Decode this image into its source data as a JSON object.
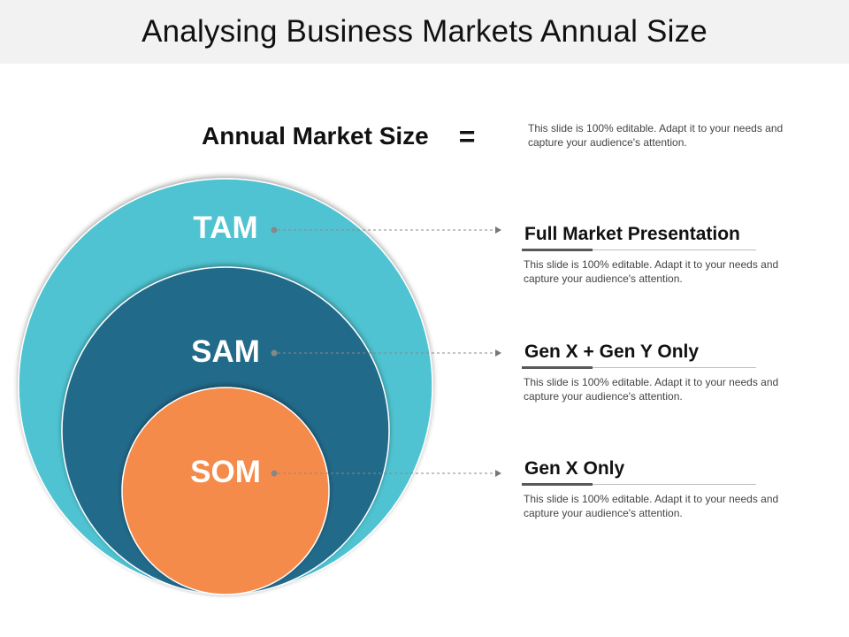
{
  "title": "Analysing Business Markets Annual Size",
  "equation": {
    "label": "Annual Market Size",
    "symbol": "=",
    "description": "This slide is 100% editable. Adapt it to your needs and capture your audience's attention."
  },
  "circles": [
    {
      "label": "TAM",
      "color": "#4fc3d1"
    },
    {
      "label": "SAM",
      "color": "#216b8a"
    },
    {
      "label": "SOM",
      "color": "#f58b4c"
    }
  ],
  "items": [
    {
      "heading": "Full Market Presentation",
      "description": "This slide is 100% editable. Adapt it to your needs and capture your audience's attention."
    },
    {
      "heading": "Gen X + Gen Y Only",
      "description": "This slide is 100% editable. Adapt it to your needs and capture your audience's attention."
    },
    {
      "heading": "Gen X Only",
      "description": "This slide is 100% editable. Adapt it to your needs and capture your audience's attention."
    }
  ]
}
